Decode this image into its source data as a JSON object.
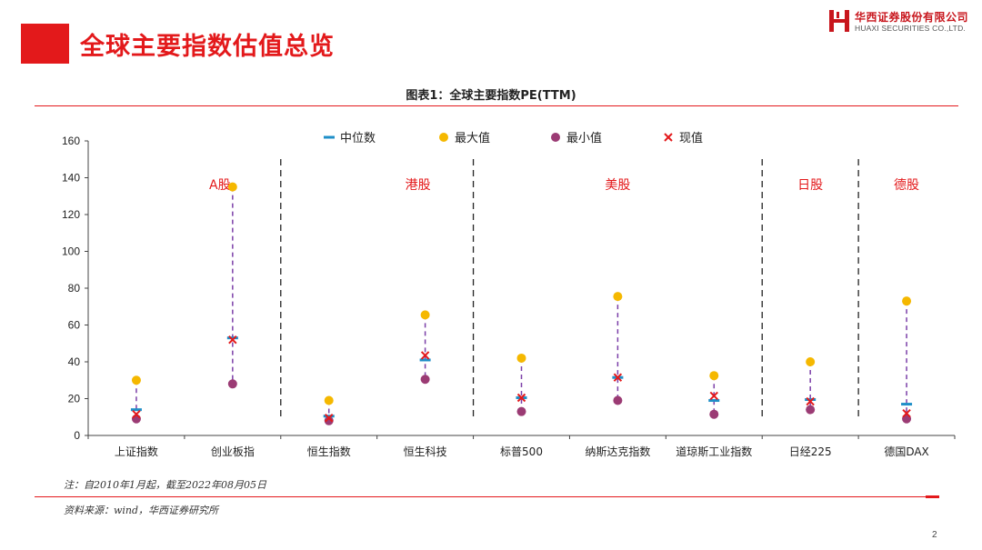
{
  "header": {
    "title": "全球主要指数估值总览",
    "logo_cn": "华西证券股份有限公司",
    "logo_en": "HUAXI SECURITIES CO.,LTD."
  },
  "chart_title": "图表1：全球主要指数PE(TTM)",
  "note": "注：自2010年1月起，截至2022年08月05日",
  "source": "资料来源：wind，华西证券研究所",
  "page_number": "2",
  "colors": {
    "accent": "#e3191b",
    "median": "#1f8fc8",
    "max": "#f5b800",
    "min": "#9b3b74",
    "current": "#e3191b",
    "range_line": "#7b3fa8"
  },
  "chart_data": {
    "type": "scatter",
    "title": "图表1：全球主要指数PE(TTM)",
    "xlabel": "",
    "ylabel": "",
    "ylim": [
      0,
      160
    ],
    "yticks": [
      0,
      20,
      40,
      60,
      80,
      100,
      120,
      140,
      160
    ],
    "grid": false,
    "legend_position": "top",
    "categories": [
      "上证指数",
      "创业板指",
      "恒生指数",
      "恒生科技",
      "标普500",
      "纳斯达克指数",
      "道琼斯工业指数",
      "日经225",
      "德国DAX"
    ],
    "series": [
      {
        "name": "中位数",
        "marker": "dash",
        "values": [
          14,
          53,
          10.5,
          41,
          20.5,
          31.5,
          19,
          19.5,
          17
        ]
      },
      {
        "name": "最大值",
        "marker": "circle",
        "values": [
          30,
          135,
          19,
          65.5,
          42,
          75.5,
          32.5,
          40,
          73
        ]
      },
      {
        "name": "最小值",
        "marker": "circle",
        "values": [
          9,
          28,
          8,
          30.5,
          13,
          19,
          11.5,
          14,
          9
        ]
      },
      {
        "name": "现值",
        "marker": "cross",
        "values": [
          11.5,
          52,
          9.5,
          43.5,
          20.5,
          31.5,
          21.5,
          18.5,
          12
        ]
      }
    ],
    "groups": [
      {
        "label": "A股",
        "start": 0,
        "end": 1
      },
      {
        "label": "港股",
        "start": 2,
        "end": 3
      },
      {
        "label": "美股",
        "start": 4,
        "end": 6
      },
      {
        "label": "日股",
        "start": 7,
        "end": 7
      },
      {
        "label": "德股",
        "start": 8,
        "end": 8
      }
    ]
  }
}
